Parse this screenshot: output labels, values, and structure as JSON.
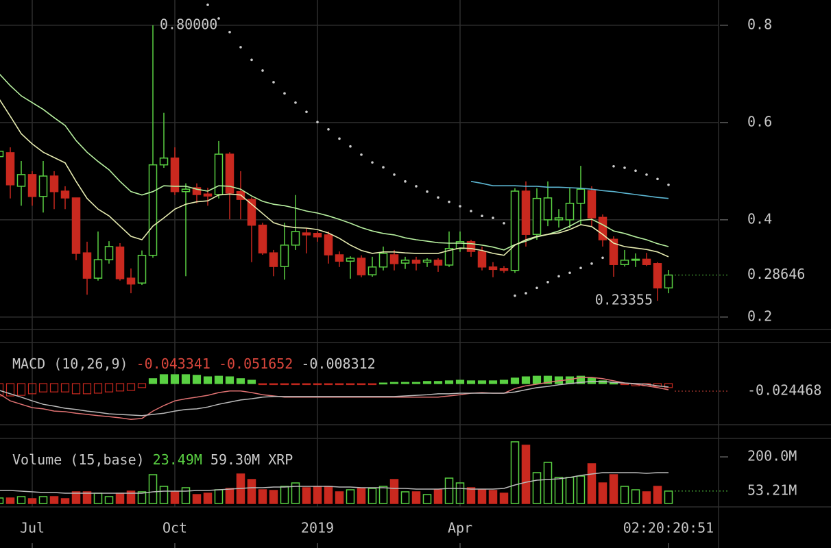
{
  "chart_data": {
    "type": "candlestick",
    "xlim": [
      0.0625,
      65.5625
    ],
    "xticks": [
      {
        "value": 3,
        "label": "Jul"
      },
      {
        "value": 16,
        "label": "Oct"
      },
      {
        "value": 29,
        "label": "2019"
      },
      {
        "value": 42,
        "label": "Apr"
      }
    ],
    "grid": true,
    "countdown": "02:20:20:51",
    "up_color": "#5ad143",
    "down_color": "#c9291f",
    "price": {
      "ylim": [
        0.1745,
        0.852
      ],
      "yticks": [
        0.8,
        0.6,
        0.4,
        0.2
      ],
      "open": [
        0.53,
        0.538,
        0.469,
        0.493,
        0.448,
        0.49,
        0.459,
        0.445,
        0.332,
        0.28,
        0.318,
        0.344,
        0.28,
        0.27,
        0.327,
        0.513,
        0.527,
        0.458,
        0.466,
        0.453,
        0.452,
        0.535,
        0.458,
        0.442,
        0.389,
        0.332,
        0.304,
        0.348,
        0.373,
        0.372,
        0.369,
        0.328,
        0.315,
        0.321,
        0.287,
        0.303,
        0.328,
        0.311,
        0.317,
        0.313,
        0.317,
        0.307,
        0.341,
        0.355,
        0.335,
        0.303,
        0.3,
        0.296,
        0.459,
        0.37,
        0.4,
        0.4,
        0.4,
        0.434,
        0.46,
        0.405,
        0.36,
        0.308,
        0.317,
        0.319,
        0.31,
        0.26
      ],
      "high": [
        0.545,
        0.549,
        0.521,
        0.5,
        0.521,
        0.5,
        0.469,
        0.445,
        0.355,
        0.376,
        0.356,
        0.352,
        0.3,
        0.337,
        0.8,
        0.62,
        0.549,
        0.475,
        0.475,
        0.466,
        0.562,
        0.539,
        0.5,
        0.446,
        0.394,
        0.338,
        0.394,
        0.451,
        0.383,
        0.376,
        0.376,
        0.335,
        0.325,
        0.327,
        0.324,
        0.345,
        0.338,
        0.324,
        0.324,
        0.321,
        0.321,
        0.376,
        0.376,
        0.359,
        0.345,
        0.313,
        0.305,
        0.465,
        0.479,
        0.465,
        0.479,
        0.422,
        0.465,
        0.511,
        0.469,
        0.411,
        0.366,
        0.338,
        0.331,
        0.332,
        0.313,
        0.297
      ],
      "low": [
        0.528,
        0.444,
        0.429,
        0.429,
        0.415,
        0.422,
        0.422,
        0.317,
        0.246,
        0.275,
        0.31,
        0.275,
        0.249,
        0.266,
        0.322,
        0.507,
        0.451,
        0.284,
        0.434,
        0.429,
        0.444,
        0.401,
        0.401,
        0.313,
        0.328,
        0.284,
        0.277,
        0.338,
        0.331,
        0.355,
        0.31,
        0.303,
        0.279,
        0.282,
        0.283,
        0.296,
        0.296,
        0.299,
        0.296,
        0.303,
        0.293,
        0.303,
        0.334,
        0.324,
        0.296,
        0.282,
        0.291,
        0.291,
        0.345,
        0.359,
        0.387,
        0.384,
        0.383,
        0.39,
        0.387,
        0.345,
        0.283,
        0.304,
        0.303,
        0.305,
        0.23355,
        0.249
      ],
      "close": [
        0.541,
        0.472,
        0.493,
        0.448,
        0.49,
        0.458,
        0.445,
        0.331,
        0.28,
        0.318,
        0.345,
        0.279,
        0.268,
        0.327,
        0.513,
        0.527,
        0.458,
        0.463,
        0.452,
        0.449,
        0.535,
        0.455,
        0.442,
        0.389,
        0.332,
        0.304,
        0.348,
        0.376,
        0.369,
        0.365,
        0.328,
        0.315,
        0.321,
        0.287,
        0.303,
        0.331,
        0.31,
        0.317,
        0.311,
        0.317,
        0.307,
        0.341,
        0.355,
        0.335,
        0.303,
        0.298,
        0.296,
        0.459,
        0.37,
        0.444,
        0.445,
        0.404,
        0.434,
        0.463,
        0.404,
        0.359,
        0.308,
        0.317,
        0.319,
        0.308,
        0.26,
        0.28646
      ],
      "series": [
        {
          "color": "#b7f0a0",
          "values": [
            0.7,
            0.676,
            0.655,
            0.641,
            0.627,
            0.61,
            0.594,
            0.563,
            0.539,
            0.52,
            0.503,
            0.479,
            0.458,
            0.451,
            0.458,
            0.47,
            0.469,
            0.469,
            0.463,
            0.459,
            0.47,
            0.469,
            0.463,
            0.449,
            0.438,
            0.432,
            0.429,
            0.424,
            0.418,
            0.414,
            0.408,
            0.401,
            0.393,
            0.384,
            0.377,
            0.372,
            0.369,
            0.363,
            0.359,
            0.356,
            0.353,
            0.352,
            0.352,
            0.351,
            0.348,
            0.344,
            0.338,
            0.349,
            0.356,
            0.365,
            0.37,
            0.377,
            0.387,
            0.399,
            0.401,
            0.39,
            0.377,
            0.372,
            0.365,
            0.359,
            0.351,
            0.345
          ]
        },
        {
          "color": "#e6ebb0",
          "values": [
            0.648,
            0.613,
            0.577,
            0.556,
            0.539,
            0.528,
            0.517,
            0.479,
            0.444,
            0.422,
            0.408,
            0.387,
            0.366,
            0.359,
            0.387,
            0.404,
            0.422,
            0.432,
            0.437,
            0.439,
            0.451,
            0.453,
            0.451,
            0.432,
            0.413,
            0.394,
            0.387,
            0.384,
            0.383,
            0.38,
            0.373,
            0.362,
            0.348,
            0.337,
            0.331,
            0.334,
            0.334,
            0.332,
            0.331,
            0.331,
            0.331,
            0.337,
            0.342,
            0.341,
            0.337,
            0.331,
            0.327,
            0.348,
            0.359,
            0.366,
            0.37,
            0.373,
            0.38,
            0.39,
            0.386,
            0.37,
            0.352,
            0.345,
            0.342,
            0.339,
            0.334,
            0.324
          ]
        },
        {
          "color": "#5cb6d2",
          "values": [
            null,
            null,
            null,
            null,
            null,
            null,
            null,
            null,
            null,
            null,
            null,
            null,
            null,
            null,
            null,
            null,
            null,
            null,
            null,
            null,
            null,
            null,
            null,
            null,
            null,
            null,
            null,
            null,
            null,
            null,
            null,
            null,
            null,
            null,
            null,
            null,
            null,
            null,
            null,
            null,
            null,
            null,
            null,
            0.479,
            0.475,
            0.47,
            0.47,
            0.47,
            0.469,
            0.469,
            0.467,
            0.467,
            0.466,
            0.465,
            0.463,
            0.46,
            0.458,
            0.455,
            0.452,
            0.449,
            0.446,
            0.444
          ]
        }
      ],
      "sar": {
        "color": "#cccccc",
        "values": [
          null,
          null,
          null,
          null,
          null,
          null,
          null,
          null,
          null,
          null,
          null,
          null,
          null,
          null,
          null,
          null,
          null,
          null,
          null,
          0.842,
          0.814,
          0.786,
          0.755,
          0.729,
          0.707,
          0.683,
          0.66,
          0.641,
          0.622,
          0.601,
          0.586,
          0.567,
          0.551,
          0.534,
          0.518,
          0.508,
          0.493,
          0.479,
          0.469,
          0.458,
          0.446,
          0.437,
          0.428,
          0.418,
          0.408,
          0.404,
          0.393,
          0.244,
          0.249,
          0.26,
          0.272,
          0.284,
          0.291,
          0.301,
          0.31,
          0.322,
          0.51,
          0.507,
          0.501,
          0.493,
          0.484,
          0.472
        ]
      },
      "high_label": {
        "value": 0.8,
        "label": "0.80000"
      },
      "low_label": 0.23355,
      "last_price": 0.28646
    },
    "macd": {
      "title": "MACD (10,26,9)",
      "readouts": [
        {
          "value": -0.043341,
          "color": "#d9463c"
        },
        {
          "value": -0.051652,
          "color": "#d9463c"
        },
        {
          "value": -0.008312,
          "color": "#cccccc"
        }
      ],
      "ylim": [
        -0.1333,
        0.1333
      ],
      "histogram": [
        -0.04,
        -0.04,
        -0.038,
        -0.033,
        -0.027,
        -0.027,
        -0.027,
        -0.033,
        -0.033,
        -0.031,
        -0.027,
        -0.024,
        -0.022,
        -0.013,
        0.016,
        0.029,
        0.029,
        0.029,
        0.027,
        0.022,
        0.024,
        0.022,
        0.016,
        0.011,
        -0.002,
        -0.002,
        -0.002,
        -0.002,
        -0.002,
        -0.002,
        -0.002,
        -0.002,
        -0.002,
        -0.002,
        -0.002,
        0.002,
        0.004,
        0.004,
        0.004,
        0.007,
        0.007,
        0.009,
        0.011,
        0.009,
        0.009,
        0.009,
        0.011,
        0.018,
        0.022,
        0.024,
        0.024,
        0.022,
        0.022,
        0.024,
        0.018,
        0.009,
        0.002,
        -0.002,
        -0.007,
        -0.007,
        -0.009,
        -0.013
      ],
      "series": [
        {
          "color": "#e07272",
          "values": [
            -0.033,
            -0.056,
            -0.067,
            -0.078,
            -0.082,
            -0.089,
            -0.091,
            -0.096,
            -0.1,
            -0.104,
            -0.107,
            -0.111,
            -0.116,
            -0.113,
            -0.089,
            -0.071,
            -0.056,
            -0.049,
            -0.044,
            -0.038,
            -0.029,
            -0.024,
            -0.024,
            -0.029,
            -0.036,
            -0.04,
            -0.044,
            -0.044,
            -0.044,
            -0.044,
            -0.044,
            -0.044,
            -0.044,
            -0.044,
            -0.044,
            -0.044,
            -0.044,
            -0.044,
            -0.044,
            -0.044,
            -0.044,
            -0.04,
            -0.036,
            -0.031,
            -0.029,
            -0.031,
            -0.031,
            -0.016,
            -0.007,
            -0.002,
            0.004,
            0.009,
            0.013,
            0.02,
            0.02,
            0.016,
            0.009,
            0.002,
            -0.002,
            -0.007,
            -0.013,
            -0.02
          ]
        },
        {
          "color": "#bbbbbb",
          "values": [
            -0.022,
            -0.033,
            -0.044,
            -0.056,
            -0.067,
            -0.073,
            -0.08,
            -0.084,
            -0.089,
            -0.093,
            -0.098,
            -0.1,
            -0.102,
            -0.104,
            -0.1,
            -0.096,
            -0.089,
            -0.084,
            -0.082,
            -0.076,
            -0.067,
            -0.06,
            -0.053,
            -0.049,
            -0.044,
            -0.042,
            -0.042,
            -0.042,
            -0.042,
            -0.042,
            -0.042,
            -0.042,
            -0.042,
            -0.042,
            -0.042,
            -0.042,
            -0.042,
            -0.04,
            -0.038,
            -0.036,
            -0.033,
            -0.033,
            -0.031,
            -0.031,
            -0.031,
            -0.031,
            -0.031,
            -0.027,
            -0.02,
            -0.013,
            -0.009,
            -0.004,
            0,
            0.004,
            0.007,
            0.007,
            0.004,
            0.002,
            0,
            -0.002,
            -0.007,
            -0.011
          ]
        }
      ],
      "last_value": -0.024468
    },
    "volume": {
      "title": "Volume (15,base)",
      "readouts": [
        {
          "value": 23.49,
          "label": "23.49M",
          "color": "#5ad143"
        },
        {
          "value": 59.3,
          "label": "59.30M XRP",
          "color": "#cccccc"
        }
      ],
      "ylim": [
        -14.7,
        279.4
      ],
      "yticks": [
        {
          "value": 200,
          "label": "200.0M"
        }
      ],
      "values": [
        23.5,
        23.5,
        29.4,
        20.6,
        29.4,
        29.4,
        20.6,
        50,
        50,
        44.1,
        29.4,
        44.1,
        52.9,
        50,
        123.5,
        73.5,
        50,
        67.6,
        38.2,
        44.1,
        58.8,
        64.7,
        126.5,
        102.9,
        58.8,
        55.9,
        73.5,
        88.2,
        67.6,
        73.5,
        73.5,
        50,
        58.8,
        64.7,
        64.7,
        73.5,
        102.9,
        50,
        50,
        38.2,
        58.8,
        108.8,
        88.2,
        67.6,
        58.8,
        55.9,
        44.1,
        264.7,
        250,
        132.4,
        176.5,
        111.8,
        111.8,
        117.6,
        170.6,
        88.2,
        123.5,
        73.5,
        58.8,
        50,
        73.5,
        53.21
      ],
      "average": {
        "color": "#bbbbbb",
        "values": [
          55.9,
          55.9,
          52.9,
          50,
          47.1,
          47.1,
          44.1,
          44.1,
          44.1,
          44.1,
          44.1,
          44.1,
          44.1,
          44.1,
          50,
          52.9,
          52.9,
          52.9,
          55.9,
          55.9,
          58.8,
          61.8,
          64.7,
          67.6,
          67.6,
          70.6,
          70.6,
          73.5,
          73.5,
          73.5,
          73.5,
          70.6,
          70.6,
          67.6,
          67.6,
          67.6,
          64.7,
          64.7,
          61.8,
          61.8,
          61.8,
          64.7,
          64.7,
          61.8,
          61.8,
          61.8,
          64.7,
          79.4,
          91.2,
          100,
          102.9,
          105.9,
          111.8,
          120.6,
          126.5,
          132.4,
          132.4,
          132.4,
          132.4,
          129.4,
          132.4,
          132.4
        ]
      },
      "last_value": {
        "value": 53.21,
        "label": "53.21M"
      }
    }
  }
}
